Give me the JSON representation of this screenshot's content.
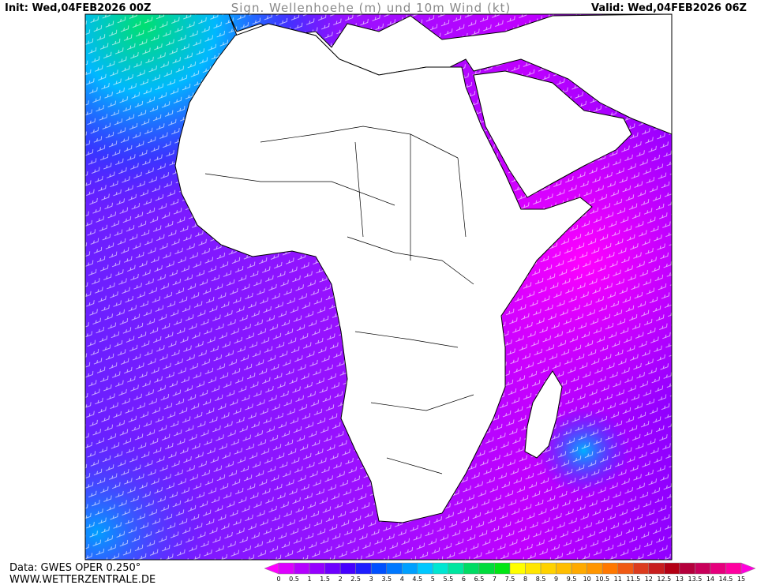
{
  "header": {
    "init": "Init: Wed,04FEB2026 00Z",
    "title": "Sign. Wellenhoehe (m) und 10m Wind (kt)",
    "valid": "Valid: Wed,04FEB2026 06Z"
  },
  "footer": {
    "source": "Data: GWES OPER 0.250°",
    "website": "WWW.WETTERZENTRALE.DE"
  },
  "colorbar": {
    "ticks": [
      0,
      0.5,
      1,
      1.5,
      2,
      2.5,
      3,
      3.5,
      4,
      4.5,
      5,
      5.5,
      6,
      6.5,
      7,
      7.5,
      8,
      8.5,
      9,
      9.5,
      10,
      10.5,
      11,
      11.5,
      12,
      12.5,
      13,
      13.5,
      14,
      14.5,
      15
    ],
    "under_color": "#ff00ff",
    "over_color": "#ff00dc",
    "colors": [
      "#dd00ff",
      "#b400ff",
      "#9600ff",
      "#6e00ff",
      "#4600ff",
      "#1e1eff",
      "#0050ff",
      "#0078ff",
      "#00a0ff",
      "#00c8ff",
      "#00e6d2",
      "#00e6a0",
      "#00dc64",
      "#00dc3c",
      "#00e614",
      "#ffff00",
      "#ffe600",
      "#ffd200",
      "#ffbe00",
      "#ffaa00",
      "#ff9600",
      "#ff7800",
      "#f05a14",
      "#dc3c1e",
      "#c81e1e",
      "#b40014",
      "#b4003c",
      "#c8005a",
      "#e6007d",
      "#ff00a0"
    ]
  }
}
